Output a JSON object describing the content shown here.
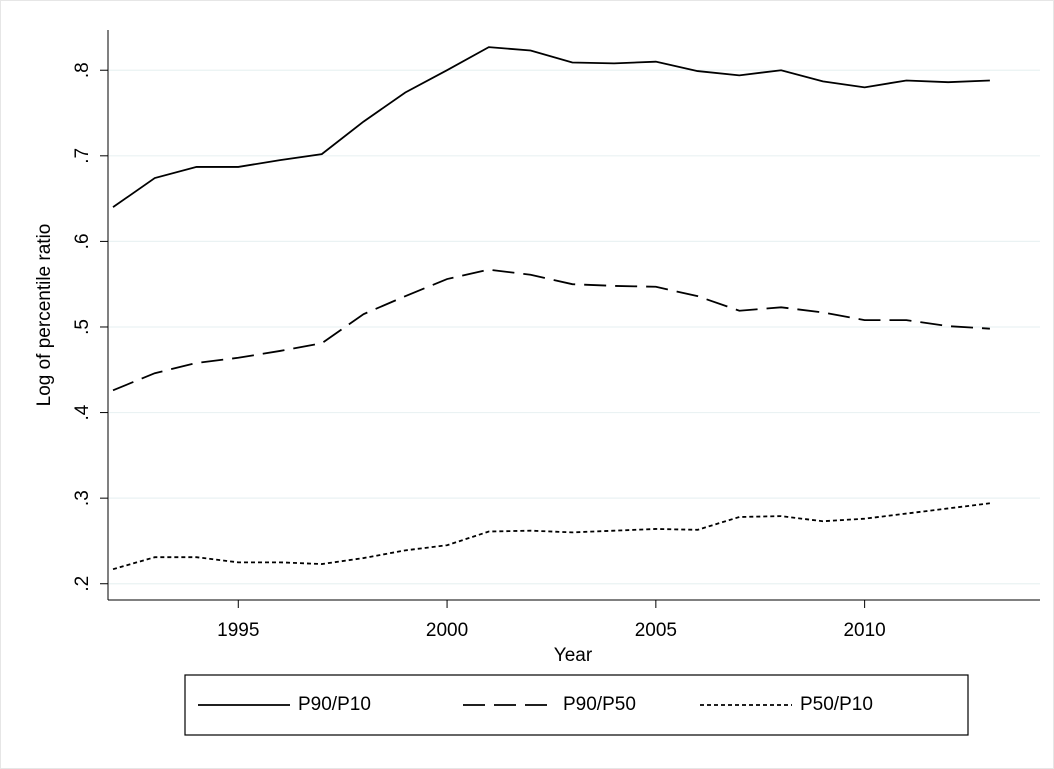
{
  "chart_data": {
    "type": "line",
    "x_label": "Year",
    "y_label": "Log of percentile ratio",
    "x": [
      1992,
      1993,
      1994,
      1995,
      1996,
      1997,
      1998,
      1999,
      2000,
      2001,
      2002,
      2003,
      2004,
      2005,
      2006,
      2007,
      2008,
      2009,
      2010,
      2011,
      2012,
      2013
    ],
    "series": [
      {
        "name": "P90/P10",
        "color": "#000000",
        "dash": "solid",
        "values": [
          0.64,
          0.674,
          0.687,
          0.687,
          0.695,
          0.702,
          0.74,
          0.774,
          0.8,
          0.827,
          0.823,
          0.809,
          0.808,
          0.81,
          0.799,
          0.794,
          0.8,
          0.787,
          0.78,
          0.788,
          0.786,
          0.788
        ]
      },
      {
        "name": "P90/P50",
        "color": "#000000",
        "dash": "long",
        "values": [
          0.426,
          0.446,
          0.458,
          0.464,
          0.472,
          0.481,
          0.515,
          0.536,
          0.556,
          0.567,
          0.561,
          0.55,
          0.548,
          0.547,
          0.536,
          0.519,
          0.523,
          0.517,
          0.508,
          0.508,
          0.501,
          0.498
        ]
      },
      {
        "name": "P50/P10",
        "color": "#000000",
        "dash": "short",
        "values": [
          0.217,
          0.231,
          0.231,
          0.225,
          0.225,
          0.223,
          0.23,
          0.239,
          0.245,
          0.261,
          0.262,
          0.26,
          0.262,
          0.264,
          0.263,
          0.278,
          0.279,
          0.273,
          0.276,
          0.282,
          0.288,
          0.294
        ]
      }
    ],
    "xlim": [
      1991.88,
      2014.2
    ],
    "xticks": [
      1995,
      2000,
      2005,
      2010
    ],
    "ylim": [
      0.181,
      0.847
    ],
    "yticks": [
      {
        "value": 0.2,
        "label": ".2"
      },
      {
        "value": 0.3,
        "label": ".3"
      },
      {
        "value": 0.4,
        "label": ".4"
      },
      {
        "value": 0.5,
        "label": ".5"
      },
      {
        "value": 0.6,
        "label": ".6"
      },
      {
        "value": 0.7,
        "label": ".7"
      },
      {
        "value": 0.8,
        "label": ".8"
      }
    ],
    "grid": true,
    "legend": "bottom"
  }
}
